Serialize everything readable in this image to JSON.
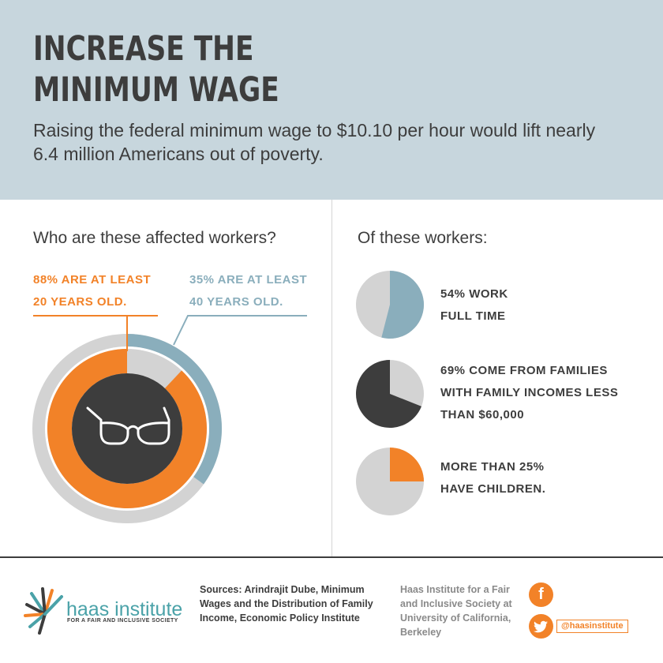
{
  "header": {
    "title_lines": [
      "INCREASE THE",
      "MINIMUM WAGE"
    ],
    "subtitle_lines": [
      "Raising the federal minimum wage to $10.10 per hour would lift nearly",
      "6.4 million Americans out of poverty."
    ]
  },
  "left": {
    "heading": "Who are these affected workers?",
    "note_orange": [
      "88% ARE AT LEAST",
      "20 YEARS OLD."
    ],
    "note_blue": [
      "35% ARE AT LEAST",
      "40 YEARS OLD."
    ]
  },
  "right": {
    "heading": "Of these workers:",
    "stats": [
      {
        "lines": [
          "54% WORK",
          "FULL TIME"
        ]
      },
      {
        "lines": [
          "69% COME FROM FAMILIES",
          "WITH FAMILY INCOMES LESS",
          "THAN $60,000"
        ]
      },
      {
        "lines": [
          "MORE THAN 25%",
          "HAVE CHILDREN."
        ]
      }
    ]
  },
  "footer": {
    "logo_name": "haas institute",
    "logo_tagline": "FOR A FAIR AND INCLUSIVE SOCIETY",
    "sources_lines": [
      "Sources: Arindrajit Dube, Minimum",
      "Wages and the Distribution of Family",
      "Income, Economic Policy Institute"
    ],
    "institute_lines": [
      "Haas Institute for a Fair",
      "and Inclusive Society at",
      "University of California,",
      "Berkeley"
    ],
    "twitter_handle": "@haasinstitute",
    "facebook_icon": "f"
  },
  "colors": {
    "orange": "#f28228",
    "blue": "#8aaebc",
    "dark": "#3d3d3d",
    "light_gray": "#d3d3d3",
    "header_bg": "#c7d6dd"
  },
  "chart_data": [
    {
      "type": "pie",
      "variant": "nested-donut",
      "series": [
        {
          "label": "88% ARE AT LEAST 20 YEARS OLD.",
          "value": 88,
          "color": "#f28228"
        },
        {
          "label": "35% ARE AT LEAST 40 YEARS OLD.",
          "value": 35,
          "color": "#8aaebc"
        }
      ],
      "remainder_color": "#d3d3d3",
      "center_icon": "glasses-icon"
    },
    {
      "type": "pie",
      "values": [
        54,
        46
      ],
      "labels": [
        "54% WORK FULL TIME",
        ""
      ],
      "colors": [
        "#8aaebc",
        "#d3d3d3"
      ]
    },
    {
      "type": "pie",
      "values": [
        69,
        31
      ],
      "labels": [
        "69% COME FROM FAMILIES WITH FAMILY INCOMES LESS THAN $60,000",
        ""
      ],
      "colors": [
        "#3d3d3d",
        "#d3d3d3"
      ]
    },
    {
      "type": "pie",
      "values": [
        25,
        75
      ],
      "labels": [
        "MORE THAN 25% HAVE CHILDREN.",
        ""
      ],
      "colors": [
        "#f28228",
        "#d3d3d3"
      ]
    }
  ]
}
